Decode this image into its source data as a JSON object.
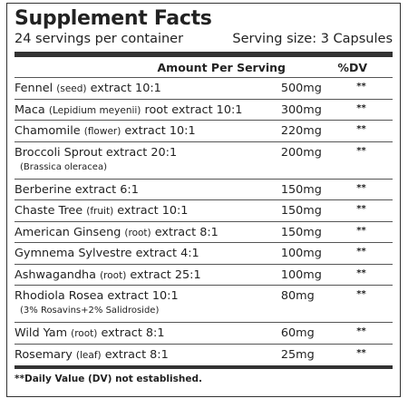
{
  "header": {
    "title": "Supplement Facts",
    "servings": "24 servings per container",
    "serving_size": "Serving size: 3 Capsules"
  },
  "table": {
    "columns": [
      "Amount Per Serving",
      "%DV"
    ],
    "rows": [
      {
        "name": "Fennel",
        "part": "(seed)",
        "rest": "extract 10:1",
        "amount": "500mg",
        "dv": "**"
      },
      {
        "name": "Maca",
        "part": "(Lepidium meyenii)",
        "rest": "root extract 10:1",
        "amount": "300mg",
        "dv": "**"
      },
      {
        "name": "Chamomile",
        "part": "(flower)",
        "rest": "extract 10:1",
        "amount": "220mg",
        "dv": "**"
      },
      {
        "name": "Broccoli Sprout extract 20:1",
        "note": "(Brassica oleracea)",
        "amount": "200mg",
        "dv": "**"
      },
      {
        "name": "Berberine extract 6:1",
        "amount": "150mg",
        "dv": "**"
      },
      {
        "name": "Chaste Tree",
        "part": "(fruit)",
        "rest": "extract 10:1",
        "amount": "150mg",
        "dv": "**"
      },
      {
        "name": "American Ginseng",
        "part": "(root)",
        "rest": "extract 8:1",
        "amount": "150mg",
        "dv": "**"
      },
      {
        "name": "Gymnema Sylvestre extract 4:1",
        "amount": "100mg",
        "dv": "**"
      },
      {
        "name": "Ashwagandha",
        "part": "(root)",
        "rest": "extract 25:1",
        "amount": "100mg",
        "dv": "**"
      },
      {
        "name": "Rhodiola Rosea extract 10:1",
        "note": "(3% Rosavins+2% Salidroside)",
        "amount": "80mg",
        "dv": "**"
      },
      {
        "name": "Wild Yam",
        "part": "(root)",
        "rest": "extract 8:1",
        "amount": "60mg",
        "dv": "**"
      },
      {
        "name": "Rosemary",
        "part": "(leaf)",
        "rest": "extract 8:1",
        "amount": "25mg",
        "dv": "**"
      }
    ]
  },
  "footer": {
    "note": "**Daily Value (DV) not established."
  }
}
